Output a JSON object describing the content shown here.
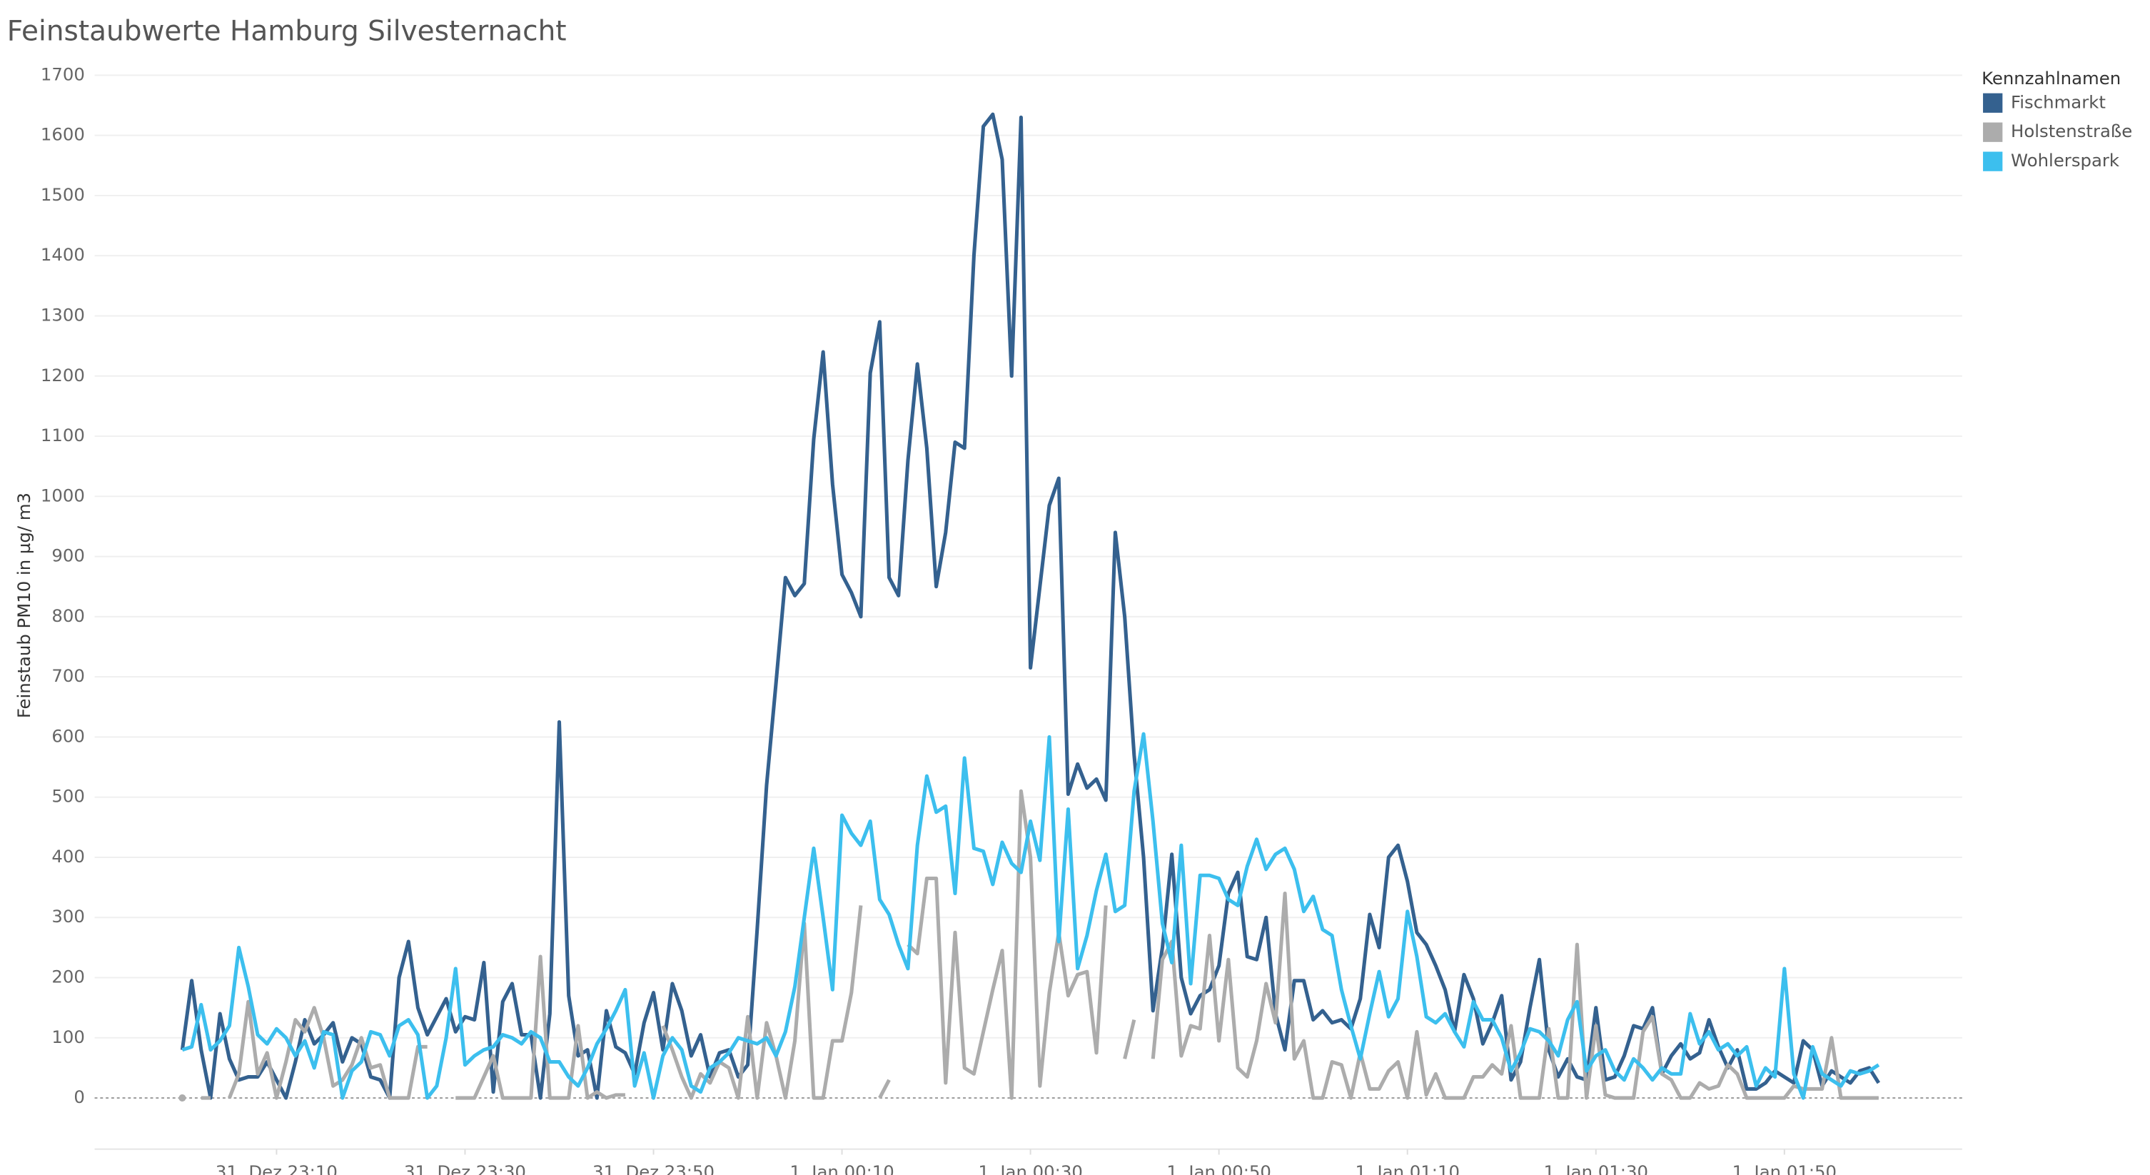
{
  "chart_data": {
    "type": "line",
    "title": "Feinstaubwerte Hamburg Silvesternacht",
    "y_label": "Feinstaub PM10 in µg/ m3",
    "legend_title": "Kennzahlnamen",
    "legend": "top-right",
    "grid": true,
    "ylim": [
      -85,
      1720
    ],
    "yticks": [
      0,
      100,
      200,
      300,
      400,
      500,
      600,
      700,
      800,
      900,
      1000,
      1100,
      1200,
      1300,
      1400,
      1500,
      1600,
      1700
    ],
    "x": [
      "31. Dez 23:00",
      "31. Dez 23:01",
      "31. Dez 23:02",
      "31. Dez 23:03",
      "31. Dez 23:04",
      "31. Dez 23:05",
      "31. Dez 23:06",
      "31. Dez 23:07",
      "31. Dez 23:08",
      "31. Dez 23:09",
      "31. Dez 23:10",
      "31. Dez 23:11",
      "31. Dez 23:12",
      "31. Dez 23:13",
      "31. Dez 23:14",
      "31. Dez 23:15",
      "31. Dez 23:16",
      "31. Dez 23:17",
      "31. Dez 23:18",
      "31. Dez 23:19",
      "31. Dez 23:20",
      "31. Dez 23:21",
      "31. Dez 23:22",
      "31. Dez 23:23",
      "31. Dez 23:24",
      "31. Dez 23:25",
      "31. Dez 23:26",
      "31. Dez 23:27",
      "31. Dez 23:28",
      "31. Dez 23:29",
      "31. Dez 23:30",
      "31. Dez 23:31",
      "31. Dez 23:32",
      "31. Dez 23:33",
      "31. Dez 23:34",
      "31. Dez 23:35",
      "31. Dez 23:36",
      "31. Dez 23:37",
      "31. Dez 23:38",
      "31. Dez 23:39",
      "31. Dez 23:40",
      "31. Dez 23:41",
      "31. Dez 23:42",
      "31. Dez 23:43",
      "31. Dez 23:44",
      "31. Dez 23:45",
      "31. Dez 23:46",
      "31. Dez 23:47",
      "31. Dez 23:48",
      "31. Dez 23:49",
      "31. Dez 23:50",
      "31. Dez 23:51",
      "31. Dez 23:52",
      "31. Dez 23:53",
      "31. Dez 23:54",
      "31. Dez 23:55",
      "31. Dez 23:56",
      "31. Dez 23:57",
      "31. Dez 23:58",
      "31. Dez 23:59",
      "1. Jan 00:00",
      "1. Jan 00:01",
      "1. Jan 00:02",
      "1. Jan 00:03",
      "1. Jan 00:04",
      "1. Jan 00:05",
      "1. Jan 00:06",
      "1. Jan 00:07",
      "1. Jan 00:08",
      "1. Jan 00:09",
      "1. Jan 00:10",
      "1. Jan 00:11",
      "1. Jan 00:12",
      "1. Jan 00:13",
      "1. Jan 00:14",
      "1. Jan 00:15",
      "1. Jan 00:16",
      "1. Jan 00:17",
      "1. Jan 00:18",
      "1. Jan 00:19",
      "1. Jan 00:20",
      "1. Jan 00:21",
      "1. Jan 00:22",
      "1. Jan 00:23",
      "1. Jan 00:24",
      "1. Jan 00:25",
      "1. Jan 00:26",
      "1. Jan 00:27",
      "1. Jan 00:28",
      "1. Jan 00:29",
      "1. Jan 00:30",
      "1. Jan 00:31",
      "1. Jan 00:32",
      "1. Jan 00:33",
      "1. Jan 00:34",
      "1. Jan 00:35",
      "1. Jan 00:36",
      "1. Jan 00:37",
      "1. Jan 00:38",
      "1. Jan 00:39",
      "1. Jan 00:40",
      "1. Jan 00:41",
      "1. Jan 00:42",
      "1. Jan 00:43",
      "1. Jan 00:44",
      "1. Jan 00:45",
      "1. Jan 00:46",
      "1. Jan 00:47",
      "1. Jan 00:48",
      "1. Jan 00:49",
      "1. Jan 00:50",
      "1. Jan 00:51",
      "1. Jan 00:52",
      "1. Jan 00:53",
      "1. Jan 00:54",
      "1. Jan 00:55",
      "1. Jan 00:56",
      "1. Jan 00:57",
      "1. Jan 00:58",
      "1. Jan 00:59",
      "1. Jan 01:00",
      "1. Jan 01:01",
      "1. Jan 01:02",
      "1. Jan 01:03",
      "1. Jan 01:04",
      "1. Jan 01:05",
      "1. Jan 01:06",
      "1. Jan 01:07",
      "1. Jan 01:08",
      "1. Jan 01:09",
      "1. Jan 01:10",
      "1. Jan 01:11",
      "1. Jan 01:12",
      "1. Jan 01:13",
      "1. Jan 01:14",
      "1. Jan 01:15",
      "1. Jan 01:16",
      "1. Jan 01:17",
      "1. Jan 01:18",
      "1. Jan 01:19",
      "1. Jan 01:20",
      "1. Jan 01:21",
      "1. Jan 01:22",
      "1. Jan 01:23",
      "1. Jan 01:24",
      "1. Jan 01:25",
      "1. Jan 01:26",
      "1. Jan 01:27",
      "1. Jan 01:28",
      "1. Jan 01:29",
      "1. Jan 01:30",
      "1. Jan 01:31",
      "1. Jan 01:32",
      "1. Jan 01:33",
      "1. Jan 01:34",
      "1. Jan 01:35",
      "1. Jan 01:36",
      "1. Jan 01:37",
      "1. Jan 01:38",
      "1. Jan 01:39",
      "1. Jan 01:40",
      "1. Jan 01:41",
      "1. Jan 01:42",
      "1. Jan 01:43",
      "1. Jan 01:44",
      "1. Jan 01:45",
      "1. Jan 01:46",
      "1. Jan 01:47",
      "1. Jan 01:48",
      "1. Jan 01:49",
      "1. Jan 01:50",
      "1. Jan 01:51",
      "1. Jan 01:52",
      "1. Jan 01:53",
      "1. Jan 01:54",
      "1. Jan 01:55",
      "1. Jan 01:56",
      "1. Jan 01:57",
      "1. Jan 01:58",
      "1. Jan 01:59",
      "1. Jan 02:00"
    ],
    "xticks": [
      "31. Dez 23:10",
      "31. Dez 23:30",
      "31. Dez 23:50",
      "1. Jan 00:10",
      "1. Jan 00:30",
      "1. Jan 00:50",
      "1. Jan 01:10",
      "1. Jan 01:30",
      "1. Jan 01:50"
    ],
    "series": [
      {
        "name": "Fischmarkt",
        "color": "#34618f",
        "values": [
          80,
          195,
          80,
          0,
          140,
          65,
          30,
          35,
          35,
          60,
          30,
          0,
          60,
          130,
          90,
          105,
          125,
          60,
          100,
          90,
          35,
          30,
          0,
          200,
          260,
          150,
          105,
          135,
          165,
          110,
          135,
          130,
          225,
          10,
          160,
          190,
          105,
          105,
          0,
          140,
          625,
          170,
          70,
          80,
          0,
          145,
          85,
          75,
          40,
          125,
          175,
          80,
          190,
          145,
          70,
          105,
          35,
          75,
          80,
          35,
          55,
          280,
          520,
          690,
          865,
          835,
          855,
          1095,
          1240,
          1020,
          870,
          840,
          800,
          1205,
          1290,
          865,
          835,
          1060,
          1220,
          1080,
          850,
          940,
          1090,
          1080,
          1400,
          1615,
          1635,
          1560,
          1200,
          1630,
          715,
          850,
          985,
          1030,
          505,
          555,
          515,
          530,
          495,
          940,
          800,
          570,
          400,
          145,
          250,
          405,
          200,
          140,
          170,
          180,
          220,
          340,
          375,
          235,
          230,
          300,
          140,
          80,
          195,
          195,
          130,
          145,
          125,
          130,
          115,
          165,
          305,
          250,
          400,
          420,
          360,
          275,
          255,
          220,
          180,
          110,
          205,
          165,
          90,
          125,
          170,
          30,
          60,
          150,
          230,
          80,
          35,
          65,
          35,
          30,
          150,
          30,
          35,
          70,
          120,
          115,
          150,
          40,
          70,
          90,
          65,
          75,
          130,
          85,
          50,
          80,
          15,
          15,
          25,
          45,
          35,
          25,
          95,
          80,
          20,
          45,
          35,
          25,
          45,
          50,
          25
        ]
      },
      {
        "name": "Holstenstraße",
        "color": "#acacac",
        "values": [
          0,
          null,
          0,
          0,
          null,
          0,
          40,
          160,
          40,
          75,
          0,
          60,
          130,
          110,
          150,
          100,
          20,
          30,
          55,
          100,
          50,
          55,
          0,
          0,
          0,
          85,
          85,
          null,
          null,
          0,
          0,
          0,
          35,
          70,
          0,
          0,
          0,
          0,
          235,
          0,
          0,
          0,
          120,
          0,
          10,
          0,
          5,
          5,
          null,
          null,
          null,
          120,
          80,
          35,
          0,
          40,
          25,
          60,
          50,
          0,
          135,
          0,
          125,
          70,
          0,
          95,
          290,
          0,
          0,
          95,
          95,
          175,
          320,
          null,
          0,
          30,
          null,
          255,
          240,
          365,
          365,
          25,
          275,
          50,
          40,
          110,
          180,
          245,
          0,
          510,
          400,
          20,
          175,
          275,
          170,
          205,
          210,
          75,
          320,
          null,
          65,
          130,
          null,
          65,
          230,
          260,
          70,
          120,
          115,
          270,
          95,
          230,
          50,
          35,
          95,
          190,
          125,
          340,
          65,
          95,
          0,
          0,
          60,
          55,
          0,
          75,
          15,
          15,
          45,
          60,
          0,
          110,
          5,
          40,
          0,
          0,
          0,
          35,
          35,
          55,
          40,
          120,
          0,
          0,
          0,
          115,
          0,
          0,
          255,
          0,
          120,
          5,
          0,
          0,
          0,
          110,
          135,
          40,
          30,
          0,
          0,
          25,
          15,
          20,
          55,
          40,
          0,
          0,
          0,
          0,
          0,
          20,
          15,
          15,
          15,
          100,
          0,
          0,
          0,
          0,
          0
        ]
      },
      {
        "name": "Wohlerspark",
        "color": "#3cbfee",
        "values": [
          80,
          85,
          155,
          80,
          95,
          120,
          250,
          185,
          105,
          90,
          115,
          100,
          70,
          95,
          50,
          110,
          105,
          0,
          45,
          60,
          110,
          105,
          70,
          120,
          130,
          105,
          0,
          20,
          100,
          215,
          55,
          70,
          80,
          85,
          105,
          100,
          90,
          110,
          100,
          60,
          60,
          35,
          20,
          50,
          90,
          115,
          145,
          180,
          20,
          75,
          0,
          70,
          100,
          80,
          20,
          10,
          50,
          60,
          75,
          100,
          95,
          90,
          100,
          70,
          110,
          185,
          300,
          415,
          300,
          180,
          470,
          440,
          420,
          460,
          330,
          305,
          255,
          215,
          420,
          535,
          475,
          485,
          340,
          565,
          415,
          410,
          355,
          425,
          390,
          375,
          460,
          395,
          600,
          260,
          480,
          215,
          270,
          345,
          405,
          310,
          320,
          510,
          605,
          460,
          290,
          225,
          420,
          190,
          370,
          370,
          365,
          330,
          320,
          385,
          430,
          380,
          405,
          415,
          380,
          310,
          335,
          280,
          270,
          180,
          120,
          65,
          140,
          210,
          135,
          165,
          310,
          235,
          135,
          125,
          140,
          110,
          85,
          160,
          130,
          130,
          100,
          45,
          75,
          115,
          110,
          95,
          70,
          130,
          160,
          45,
          70,
          80,
          45,
          30,
          65,
          50,
          30,
          50,
          40,
          40,
          140,
          90,
          110,
          80,
          90,
          70,
          85,
          20,
          50,
          35,
          215,
          40,
          0,
          85,
          40,
          30,
          20,
          45,
          40,
          45,
          55
        ]
      }
    ]
  }
}
